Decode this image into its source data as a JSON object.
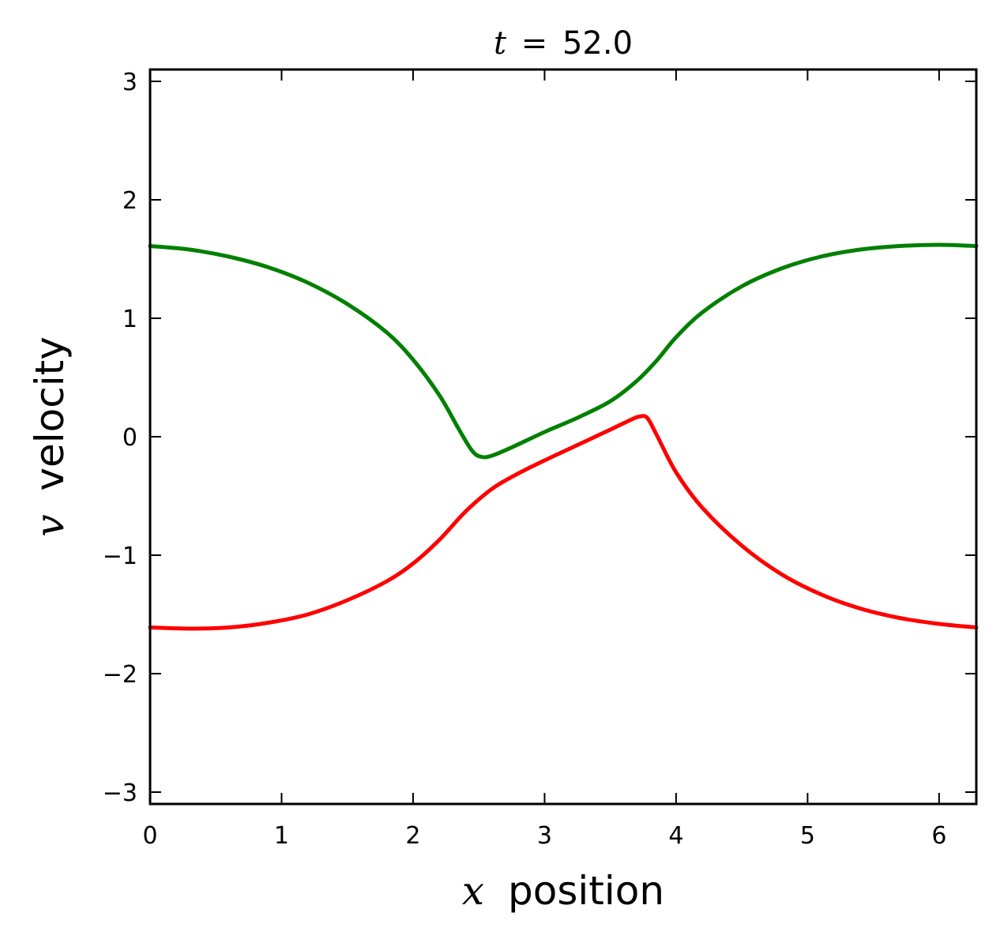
{
  "chart_data": {
    "type": "line",
    "title": {
      "var": "t",
      "eq": "=",
      "value": "52.0"
    },
    "xlabel": {
      "var": "x",
      "text": "position"
    },
    "ylabel": {
      "var": "v",
      "text": "velocity"
    },
    "xlim": [
      0,
      6.283
    ],
    "ylim": [
      -3.1,
      3.1
    ],
    "xticks": [
      {
        "value": 0,
        "label": "0"
      },
      {
        "value": 1,
        "label": "1"
      },
      {
        "value": 2,
        "label": "2"
      },
      {
        "value": 3,
        "label": "3"
      },
      {
        "value": 4,
        "label": "4"
      },
      {
        "value": 5,
        "label": "5"
      },
      {
        "value": 6,
        "label": "6"
      }
    ],
    "yticks": [
      {
        "value": -3,
        "label": "−3"
      },
      {
        "value": -2,
        "label": "−2"
      },
      {
        "value": -1,
        "label": "−1"
      },
      {
        "value": 0,
        "label": "0"
      },
      {
        "value": 1,
        "label": "1"
      },
      {
        "value": 2,
        "label": "2"
      },
      {
        "value": 3,
        "label": "3"
      }
    ],
    "grid": false,
    "series": [
      {
        "color": "#008000",
        "x": [
          0,
          0.3,
          0.6,
          0.9,
          1.2,
          1.5,
          1.8,
          2.0,
          2.2,
          2.35,
          2.45,
          2.52,
          2.6,
          2.75,
          3.0,
          3.25,
          3.5,
          3.7,
          3.85,
          4.0,
          4.2,
          4.5,
          4.8,
          5.1,
          5.4,
          5.7,
          6.0,
          6.283
        ],
        "y": [
          1.61,
          1.58,
          1.52,
          1.43,
          1.3,
          1.12,
          0.88,
          0.65,
          0.35,
          0.06,
          -0.12,
          -0.17,
          -0.16,
          -0.09,
          0.04,
          0.16,
          0.3,
          0.47,
          0.64,
          0.84,
          1.05,
          1.27,
          1.42,
          1.52,
          1.58,
          1.61,
          1.62,
          1.61
        ]
      },
      {
        "color": "#ff0000",
        "x": [
          0,
          0.3,
          0.6,
          0.9,
          1.2,
          1.5,
          1.8,
          2.0,
          2.2,
          2.4,
          2.6,
          2.8,
          3.0,
          3.25,
          3.5,
          3.65,
          3.72,
          3.78,
          3.85,
          4.0,
          4.2,
          4.5,
          4.8,
          5.1,
          5.4,
          5.7,
          6.0,
          6.283
        ],
        "y": [
          -1.61,
          -1.62,
          -1.61,
          -1.57,
          -1.5,
          -1.38,
          -1.22,
          -1.07,
          -0.87,
          -0.63,
          -0.44,
          -0.31,
          -0.2,
          -0.07,
          0.06,
          0.14,
          0.17,
          0.16,
          0.02,
          -0.3,
          -0.6,
          -0.92,
          -1.16,
          -1.33,
          -1.45,
          -1.53,
          -1.58,
          -1.61
        ]
      }
    ]
  }
}
